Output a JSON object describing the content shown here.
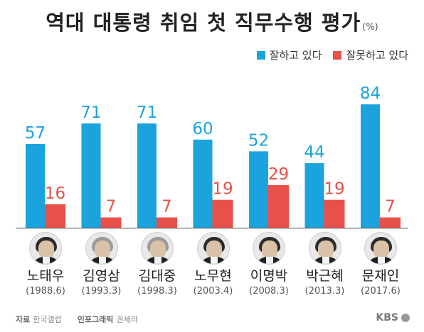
{
  "title": "역대 대통령 취임 첫 직무수행 평가",
  "unit": "(%)",
  "colors": {
    "good": "#1ba3de",
    "bad": "#e8504a"
  },
  "chart_data": {
    "type": "bar",
    "categories": [
      "노태우",
      "김영삼",
      "김대중",
      "노무현",
      "이명박",
      "박근혜",
      "문재인"
    ],
    "terms": [
      "(1988.6)",
      "(1993.3)",
      "(1998.3)",
      "(2003.4)",
      "(2008.3)",
      "(2013.3)",
      "(2017.6)"
    ],
    "series": [
      {
        "name": "잘하고 있다",
        "values": [
          57,
          71,
          71,
          60,
          52,
          44,
          84
        ]
      },
      {
        "name": "잘못하고 있다",
        "values": [
          16,
          7,
          7,
          19,
          29,
          19,
          7
        ]
      }
    ],
    "ylim": [
      0,
      100
    ],
    "legend_position": "top-right",
    "grid": false
  },
  "footer": {
    "source_label": "자료",
    "source": "한국갤럽",
    "graphic_label": "인포그래픽",
    "designer": "권세라"
  },
  "logo": "KBS"
}
